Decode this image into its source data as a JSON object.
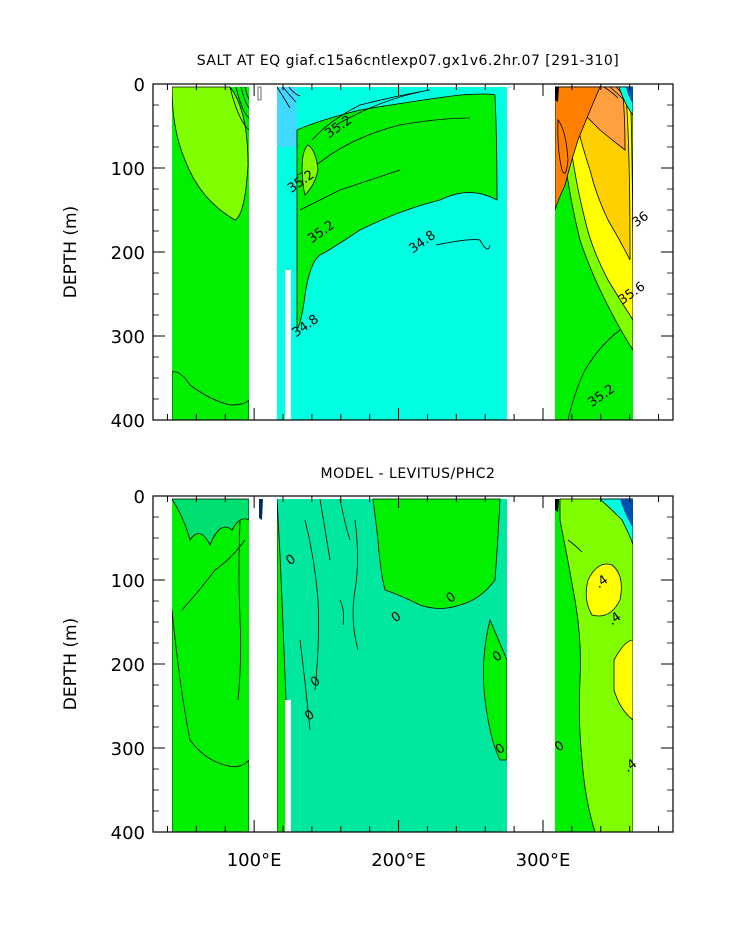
{
  "chart_data": [
    {
      "type": "heatmap",
      "title": "SALT AT EQ giaf.c15a6cntlexp07.gx1v6.2hr.07 [291-310]",
      "ylabel": "DEPTH (m)",
      "xlabel": "",
      "xlim": [
        30,
        390
      ],
      "ylim": [
        0,
        400
      ],
      "y_reversed": true,
      "y_ticks": [
        "0",
        "100",
        "200",
        "300",
        "400"
      ],
      "x_ticks": [],
      "contour_labels": [
        {
          "text": "35.2",
          "x": 160,
          "y": 55
        },
        {
          "text": "35.2",
          "x": 134,
          "y": 120
        },
        {
          "text": "35.2",
          "x": 148,
          "y": 180
        },
        {
          "text": "34.8",
          "x": 218,
          "y": 192
        },
        {
          "text": "34.8",
          "x": 137,
          "y": 292
        },
        {
          "text": "36",
          "x": 369,
          "y": 165
        },
        {
          "text": "35.6",
          "x": 363,
          "y": 253
        },
        {
          "text": "35.2",
          "x": 342,
          "y": 375
        }
      ],
      "land_bands_lon": [
        [
          98,
          117
        ],
        [
          279,
          314
        ]
      ]
    },
    {
      "type": "heatmap",
      "title": "MODEL - LEVITUS/PHC2",
      "ylabel": "DEPTH (m)",
      "xlabel": "",
      "xlim": [
        30,
        390
      ],
      "ylim": [
        0,
        400
      ],
      "y_reversed": true,
      "y_ticks": [
        "0",
        "100",
        "200",
        "300",
        "400"
      ],
      "x_ticks": [
        "100°E",
        "200°E",
        "300°E"
      ],
      "contour_labels": [
        {
          "text": "0",
          "x": 127,
          "y": 80
        },
        {
          "text": "0",
          "x": 144,
          "y": 225
        },
        {
          "text": "0",
          "x": 140,
          "y": 265
        },
        {
          "text": "0",
          "x": 200,
          "y": 148
        },
        {
          "text": "0",
          "x": 238,
          "y": 125
        },
        {
          "text": "0",
          "x": 270,
          "y": 195
        },
        {
          "text": "0",
          "x": 272,
          "y": 305
        },
        {
          "text": "0",
          "x": 313,
          "y": 302
        },
        {
          "text": ".4",
          "x": 342,
          "y": 106
        },
        {
          "text": ".4",
          "x": 351,
          "y": 150
        },
        {
          "text": ".4",
          "x": 362,
          "y": 325
        }
      ],
      "land_bands_lon": [
        [
          98,
          117
        ],
        [
          279,
          314
        ]
      ]
    }
  ],
  "colors": {
    "fresh": "#00ffe0",
    "mid_green": "#00f000",
    "light_green": "#80ff00",
    "yellow": "#ffff00",
    "gold": "#ffd000",
    "orange": "#ffa040",
    "dark_orange": "#ff8000",
    "deep_blue": "#0050b0",
    "land": "#ffffff",
    "line": "#000000"
  }
}
